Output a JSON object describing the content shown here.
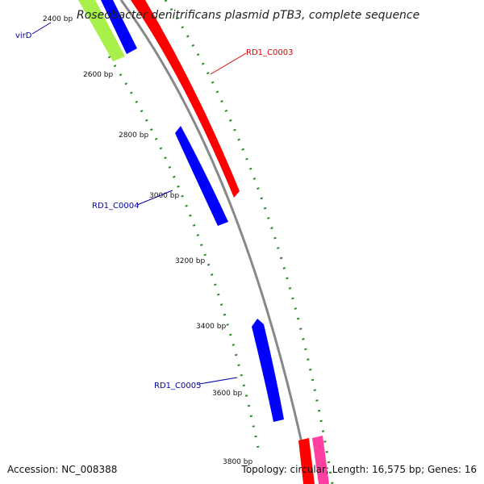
{
  "title": "Roseobacter denitrificans plasmid pTB3, complete sequence",
  "footer": {
    "accession": "Accession: NC_008388",
    "summary": "Topology: circular; Length: 16,575 bp; Genes: 16"
  },
  "colors": {
    "backbone": "#888888",
    "tick_green": "#2a8a2a",
    "gene_red": "#ff0000",
    "gene_blue": "#0000ff",
    "gene_lime": "#a8f04a",
    "gene_pink": "#ff40a0",
    "label_red": "#dd0000",
    "label_blue": "#0000aa"
  },
  "scale_labels": [
    "2400 bp",
    "2600 bp",
    "2800 bp",
    "3000 bp",
    "3200 bp",
    "3400 bp",
    "3600 bp",
    "3800 bp"
  ],
  "genes": [
    {
      "id": "virD",
      "label": "virD",
      "color_key": "blue",
      "label_color_key": "label_blue"
    },
    {
      "id": "rd1-c0003",
      "label": "RD1_C0003",
      "color_key": "red",
      "label_color_key": "label_red"
    },
    {
      "id": "rd1-c0004",
      "label": "RD1_C0004",
      "color_key": "blue",
      "label_color_key": "label_blue"
    },
    {
      "id": "rd1-c0005",
      "label": "RD1_C0005",
      "color_key": "blue",
      "label_color_key": "label_blue"
    }
  ]
}
